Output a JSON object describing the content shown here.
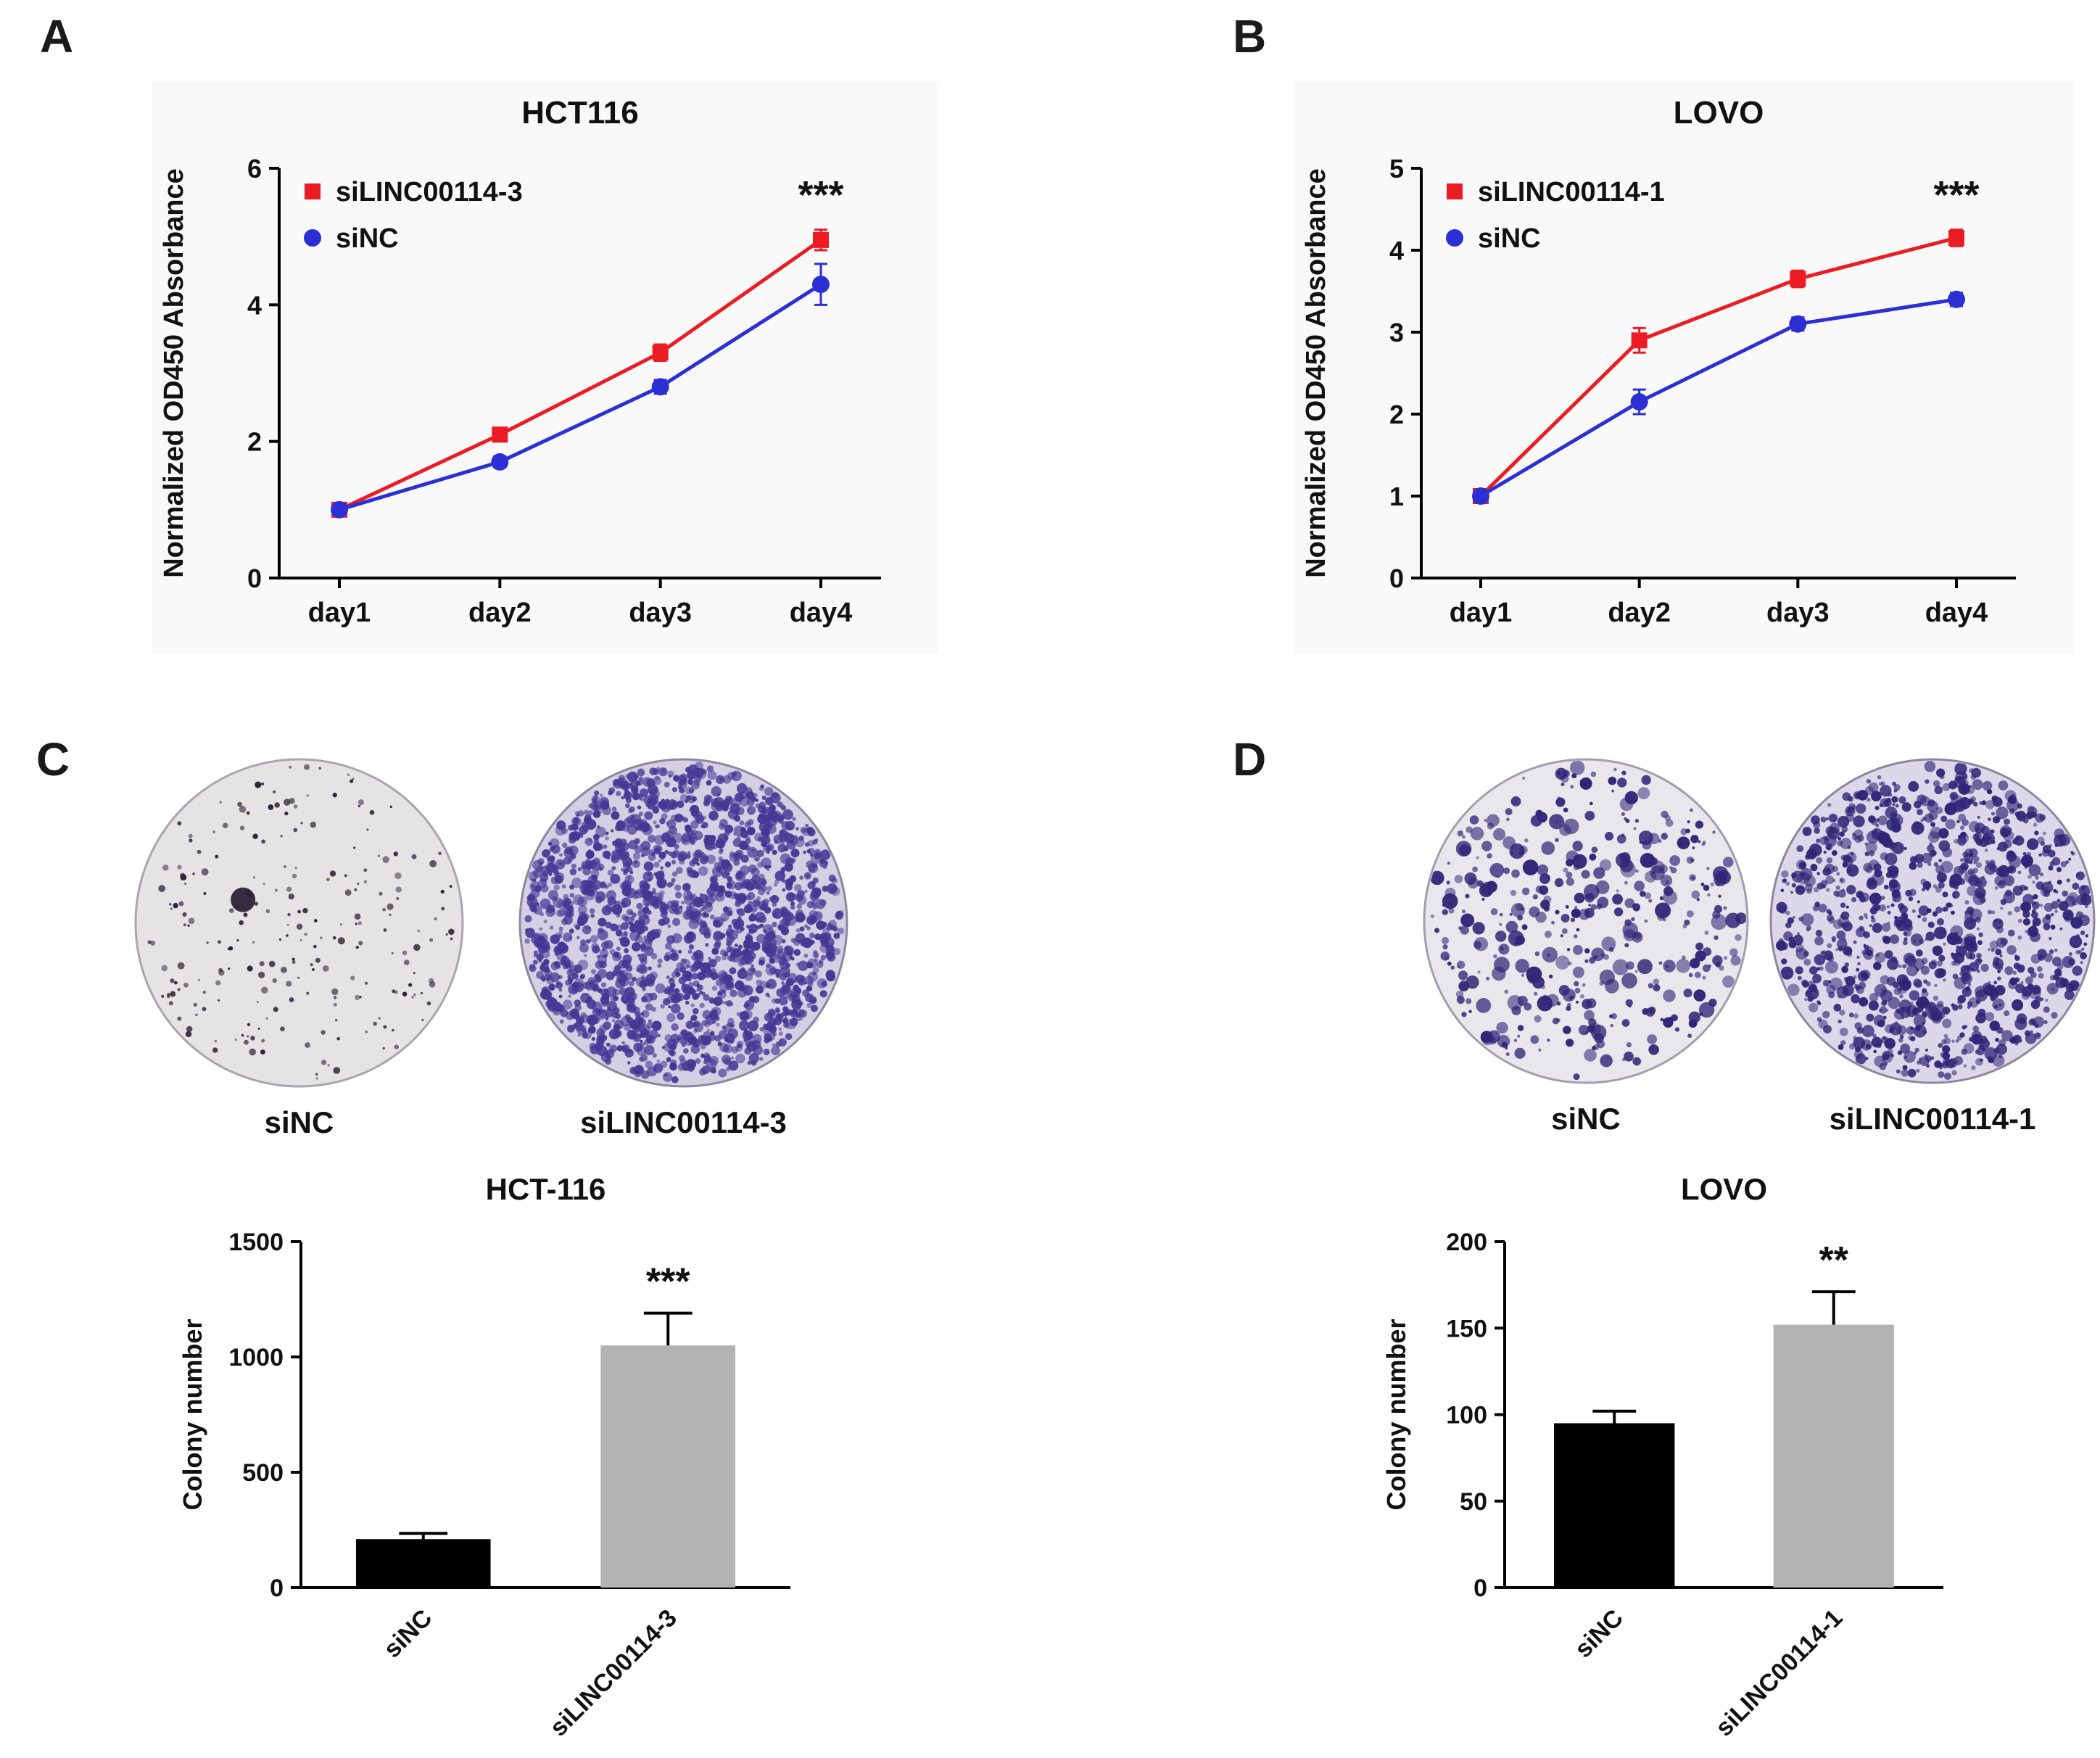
{
  "panels": {
    "A": {
      "label": "A"
    },
    "B": {
      "label": "B"
    },
    "C": {
      "label": "C"
    },
    "D": {
      "label": "D"
    }
  },
  "dishes": {
    "C": [
      {
        "label": "siNC",
        "dot_count": 230,
        "dot_min": 1.5,
        "dot_max": 5,
        "skew": 1.6,
        "dot_color": "#2a2336",
        "bg": "#e6e3e4",
        "rim": "#a9a4ae",
        "seed": 11,
        "blob": [
          0.33,
          0.43,
          17
        ]
      },
      {
        "label": "siLINC00114-3",
        "dot_count": 1900,
        "dot_min": 2,
        "dot_max": 7.5,
        "skew": 1.0,
        "dot_color": "#463795",
        "bg": "#d5cfe3",
        "rim": "#8d86a0",
        "seed": 22,
        "blob": null
      }
    ],
    "D": [
      {
        "label": "siNC",
        "dot_count": 430,
        "dot_min": 2,
        "dot_max": 11,
        "skew": 1.8,
        "dot_color": "#312577",
        "bg": "#e9e6ec",
        "rim": "#a39dae",
        "seed": 33,
        "blob": null
      },
      {
        "label": "siLINC00114-1",
        "dot_count": 1100,
        "dot_min": 2,
        "dot_max": 9,
        "skew": 1.5,
        "dot_color": "#312577",
        "bg": "#ddd8e9",
        "rim": "#8d86a0",
        "seed": 44,
        "blob": null
      }
    ]
  },
  "chart_data": [
    {
      "id": "A",
      "type": "line",
      "title": "HCT116",
      "xlabel": "",
      "ylabel": "Normalized OD450 Absorbance",
      "categories": [
        "day1",
        "day2",
        "day3",
        "day4"
      ],
      "ylim": [
        0,
        6
      ],
      "yticks": [
        0,
        2,
        4,
        6
      ],
      "grid": false,
      "legend_position": "top-left",
      "series": [
        {
          "name": "siLINC00114-3",
          "color": "#ec1c24",
          "marker": "square",
          "values": [
            1.0,
            2.1,
            3.3,
            4.95
          ],
          "errors": [
            0.05,
            0.1,
            0.12,
            0.15
          ]
        },
        {
          "name": "siNC",
          "color": "#2b2fd5",
          "marker": "circle",
          "values": [
            1.0,
            1.7,
            2.8,
            4.3
          ],
          "errors": [
            0.05,
            0.08,
            0.1,
            0.3
          ]
        }
      ],
      "annotation": {
        "text": "***",
        "x_index": 3
      }
    },
    {
      "id": "B",
      "type": "line",
      "title": "LOVO",
      "xlabel": "",
      "ylabel": "Normalized OD450 Absorbance",
      "categories": [
        "day1",
        "day2",
        "day3",
        "day4"
      ],
      "ylim": [
        0,
        5
      ],
      "yticks": [
        0,
        1,
        2,
        3,
        4,
        5
      ],
      "grid": false,
      "legend_position": "top-left",
      "series": [
        {
          "name": "siLINC00114-1",
          "color": "#ec1c24",
          "marker": "square",
          "values": [
            1.0,
            2.9,
            3.65,
            4.15
          ],
          "errors": [
            0.06,
            0.15,
            0.1,
            0.1
          ]
        },
        {
          "name": "siNC",
          "color": "#2b2fd5",
          "marker": "circle",
          "values": [
            1.0,
            2.15,
            3.1,
            3.4
          ],
          "errors": [
            0.06,
            0.15,
            0.08,
            0.08
          ]
        }
      ],
      "annotation": {
        "text": "***",
        "x_index": 3
      }
    },
    {
      "id": "C",
      "type": "bar",
      "title": "HCT-116",
      "xlabel": "",
      "ylabel": "Colony number",
      "categories": [
        "siNC",
        "siLINC00114-3"
      ],
      "values": [
        210,
        1050
      ],
      "errors": [
        25,
        140
      ],
      "bar_colors": [
        "#000000",
        "#b3b3b3"
      ],
      "ylim": [
        0,
        1500
      ],
      "yticks": [
        0,
        500,
        1000,
        1500
      ],
      "grid": false,
      "annotation": {
        "text": "***",
        "x_index": 1
      }
    },
    {
      "id": "D",
      "type": "bar",
      "title": "LOVO",
      "xlabel": "",
      "ylabel": "Colony number",
      "categories": [
        "siNC",
        "siLINC00114-1"
      ],
      "values": [
        95,
        152
      ],
      "errors": [
        7,
        19
      ],
      "bar_colors": [
        "#000000",
        "#b3b3b3"
      ],
      "ylim": [
        0,
        200
      ],
      "yticks": [
        0,
        50,
        100,
        150,
        200
      ],
      "grid": false,
      "annotation": {
        "text": "**",
        "x_index": 1
      }
    }
  ]
}
